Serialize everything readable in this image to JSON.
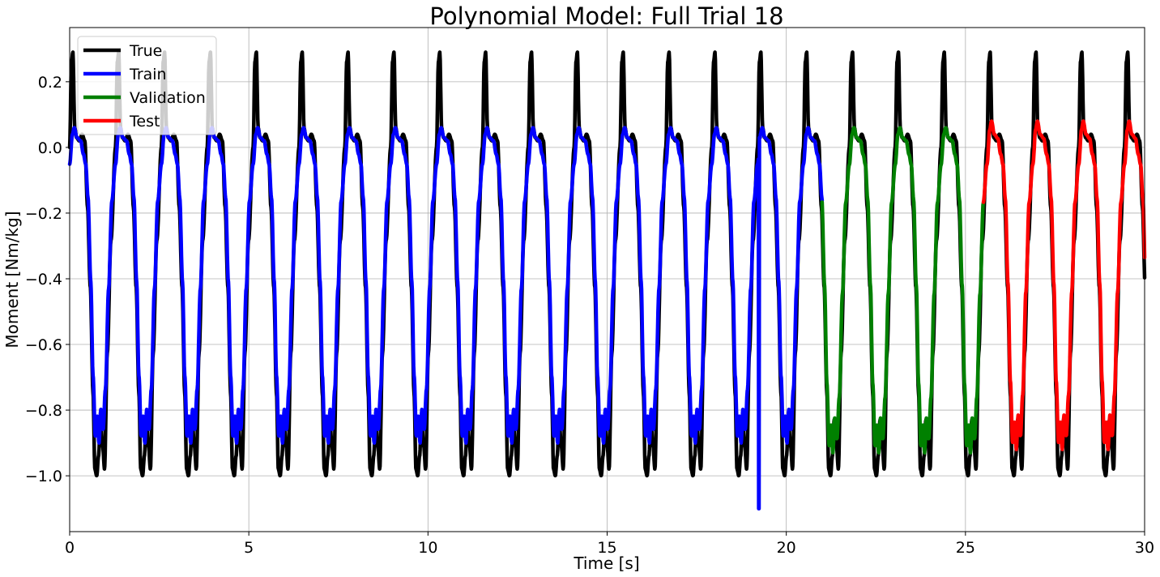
{
  "chart_data": {
    "type": "line",
    "title": "Polynomial Model: Full Trial 18",
    "xlabel": "Time [s]",
    "ylabel": "Moment [Nm/kg]",
    "xlim": [
      0,
      30
    ],
    "ylim": [
      -1.17,
      0.365
    ],
    "xticks": [
      0,
      5,
      10,
      15,
      20,
      25,
      30
    ],
    "xtick_labels": [
      "0",
      "5",
      "10",
      "15",
      "20",
      "25",
      "30"
    ],
    "yticks": [
      -1.0,
      -0.8,
      -0.6,
      -0.4,
      -0.2,
      0.0,
      0.2
    ],
    "ytick_labels": [
      "−1.0",
      "−0.8",
      "−0.6",
      "−0.4",
      "−0.2",
      "0.0",
      "0.2"
    ],
    "grid": true,
    "legend_position": "top-left",
    "gait_period_s": 1.28,
    "series": [
      {
        "name": "True",
        "color": "#000000",
        "x_range": [
          0,
          30
        ],
        "peak": 0.29,
        "trough": -1.0,
        "note_values": "periodic cycle: 0.0 → 0.29 peak → 0.03 plateau → -0.42 → -0.97 trough → -0.82"
      },
      {
        "name": "Train",
        "color": "#0000ff",
        "x_range": [
          0,
          21.0
        ],
        "peak": 0.06,
        "trough": -0.9,
        "spike": {
          "x": 19.25,
          "y_min": -1.1,
          "y_max": 0.03
        }
      },
      {
        "name": "Validation",
        "color": "#008000",
        "x_range": [
          21.0,
          25.5
        ],
        "peak": 0.06,
        "trough": -0.93
      },
      {
        "name": "Test",
        "color": "#ff0000",
        "x_range": [
          25.5,
          30
        ],
        "peak": 0.08,
        "trough": -0.92
      }
    ]
  }
}
